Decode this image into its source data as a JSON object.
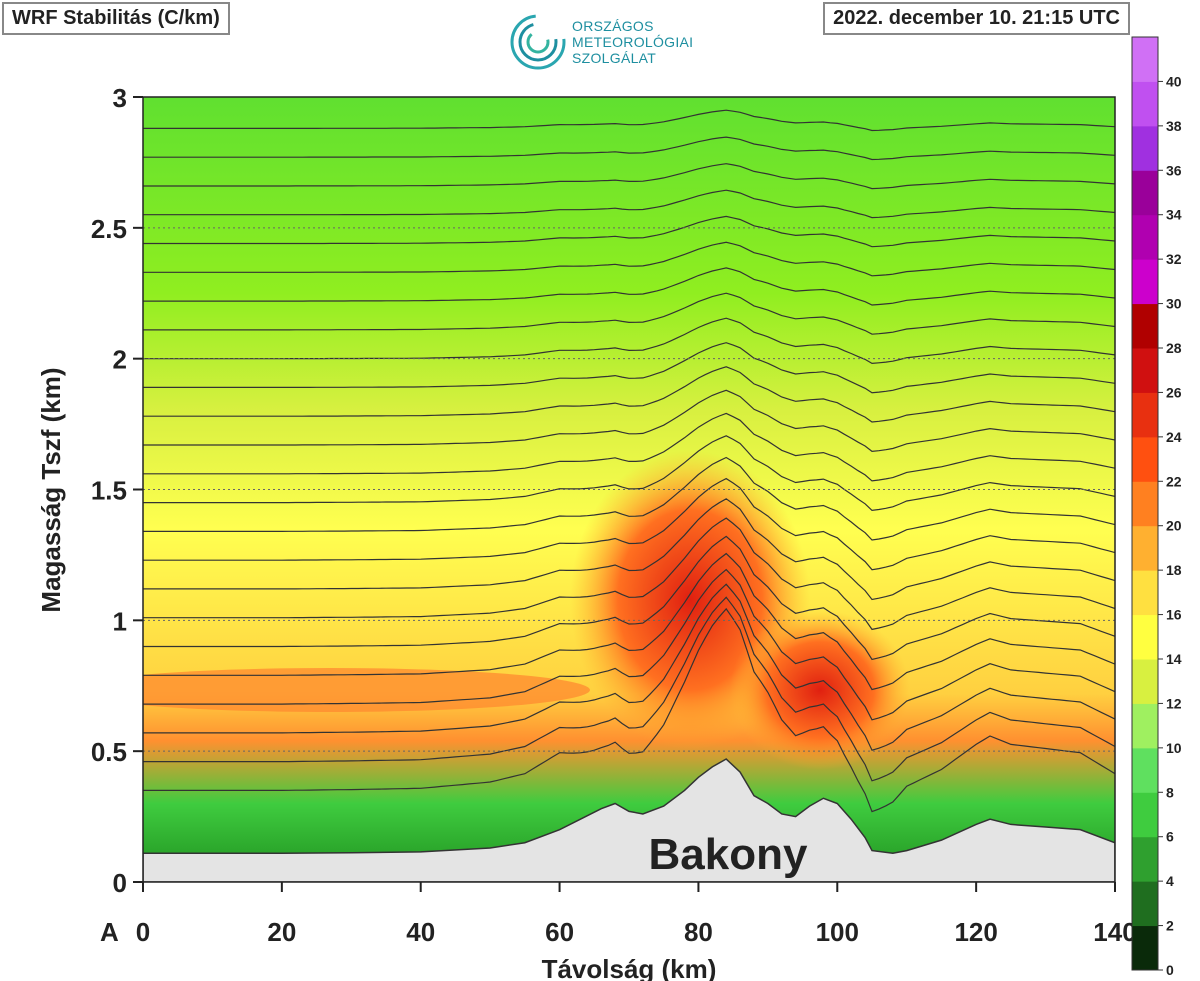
{
  "header": {
    "title": "WRF Stabilitás (C/km)",
    "datetime": "2022. december 10. 21:15 UTC",
    "logo_lines": [
      "ORSZÁGOS",
      "METEOROLÓGIAI",
      "SZOLGÁLAT"
    ]
  },
  "chart_data": {
    "type": "heatmap",
    "title": "WRF Stabilitás (C/km)",
    "xlabel": "Távolság (km)",
    "ylabel": "Magasság Tszf (km)",
    "xlim": [
      0,
      140
    ],
    "ylim": [
      0,
      3
    ],
    "x_ticks": [
      "0",
      "20",
      "40",
      "60",
      "80",
      "100",
      "120",
      "140"
    ],
    "y_ticks": [
      "0",
      "0.5",
      "1",
      "1.5",
      "2",
      "2.5",
      "3"
    ],
    "x_start_label": "A",
    "grid": true,
    "annotation": "Bakony",
    "terrain": {
      "x": [
        0,
        10,
        20,
        30,
        40,
        50,
        55,
        60,
        63,
        66,
        68,
        70,
        72,
        75,
        78,
        80,
        82,
        84,
        86,
        88,
        90,
        92,
        94,
        96,
        98,
        100,
        102,
        104,
        105,
        108,
        110,
        115,
        120,
        122,
        125,
        130,
        135,
        140
      ],
      "y": [
        0.11,
        0.11,
        0.11,
        0.112,
        0.115,
        0.13,
        0.15,
        0.2,
        0.24,
        0.28,
        0.3,
        0.27,
        0.26,
        0.29,
        0.35,
        0.4,
        0.44,
        0.47,
        0.42,
        0.33,
        0.3,
        0.26,
        0.25,
        0.29,
        0.32,
        0.3,
        0.24,
        0.17,
        0.12,
        0.11,
        0.12,
        0.16,
        0.22,
        0.24,
        0.22,
        0.21,
        0.2,
        0.15
      ]
    },
    "colorbar": {
      "labels": [
        "0",
        "2",
        "4",
        "6",
        "8",
        "10",
        "12",
        "14",
        "16",
        "18",
        "20",
        "22",
        "24",
        "26",
        "28",
        "30",
        "32",
        "34",
        "36",
        "38",
        "40"
      ],
      "colors": [
        "#0a2a0a",
        "#1f6e1f",
        "#2fa02f",
        "#3fcc3f",
        "#5fe05f",
        "#9ff060",
        "#d8f040",
        "#ffff40",
        "#ffe040",
        "#ffb030",
        "#ff8020",
        "#ff5010",
        "#e83010",
        "#d01010",
        "#b00000",
        "#cc00cc",
        "#b000b0",
        "#9a009a",
        "#a030e0",
        "#c050f0",
        "#d070f5"
      ]
    }
  }
}
